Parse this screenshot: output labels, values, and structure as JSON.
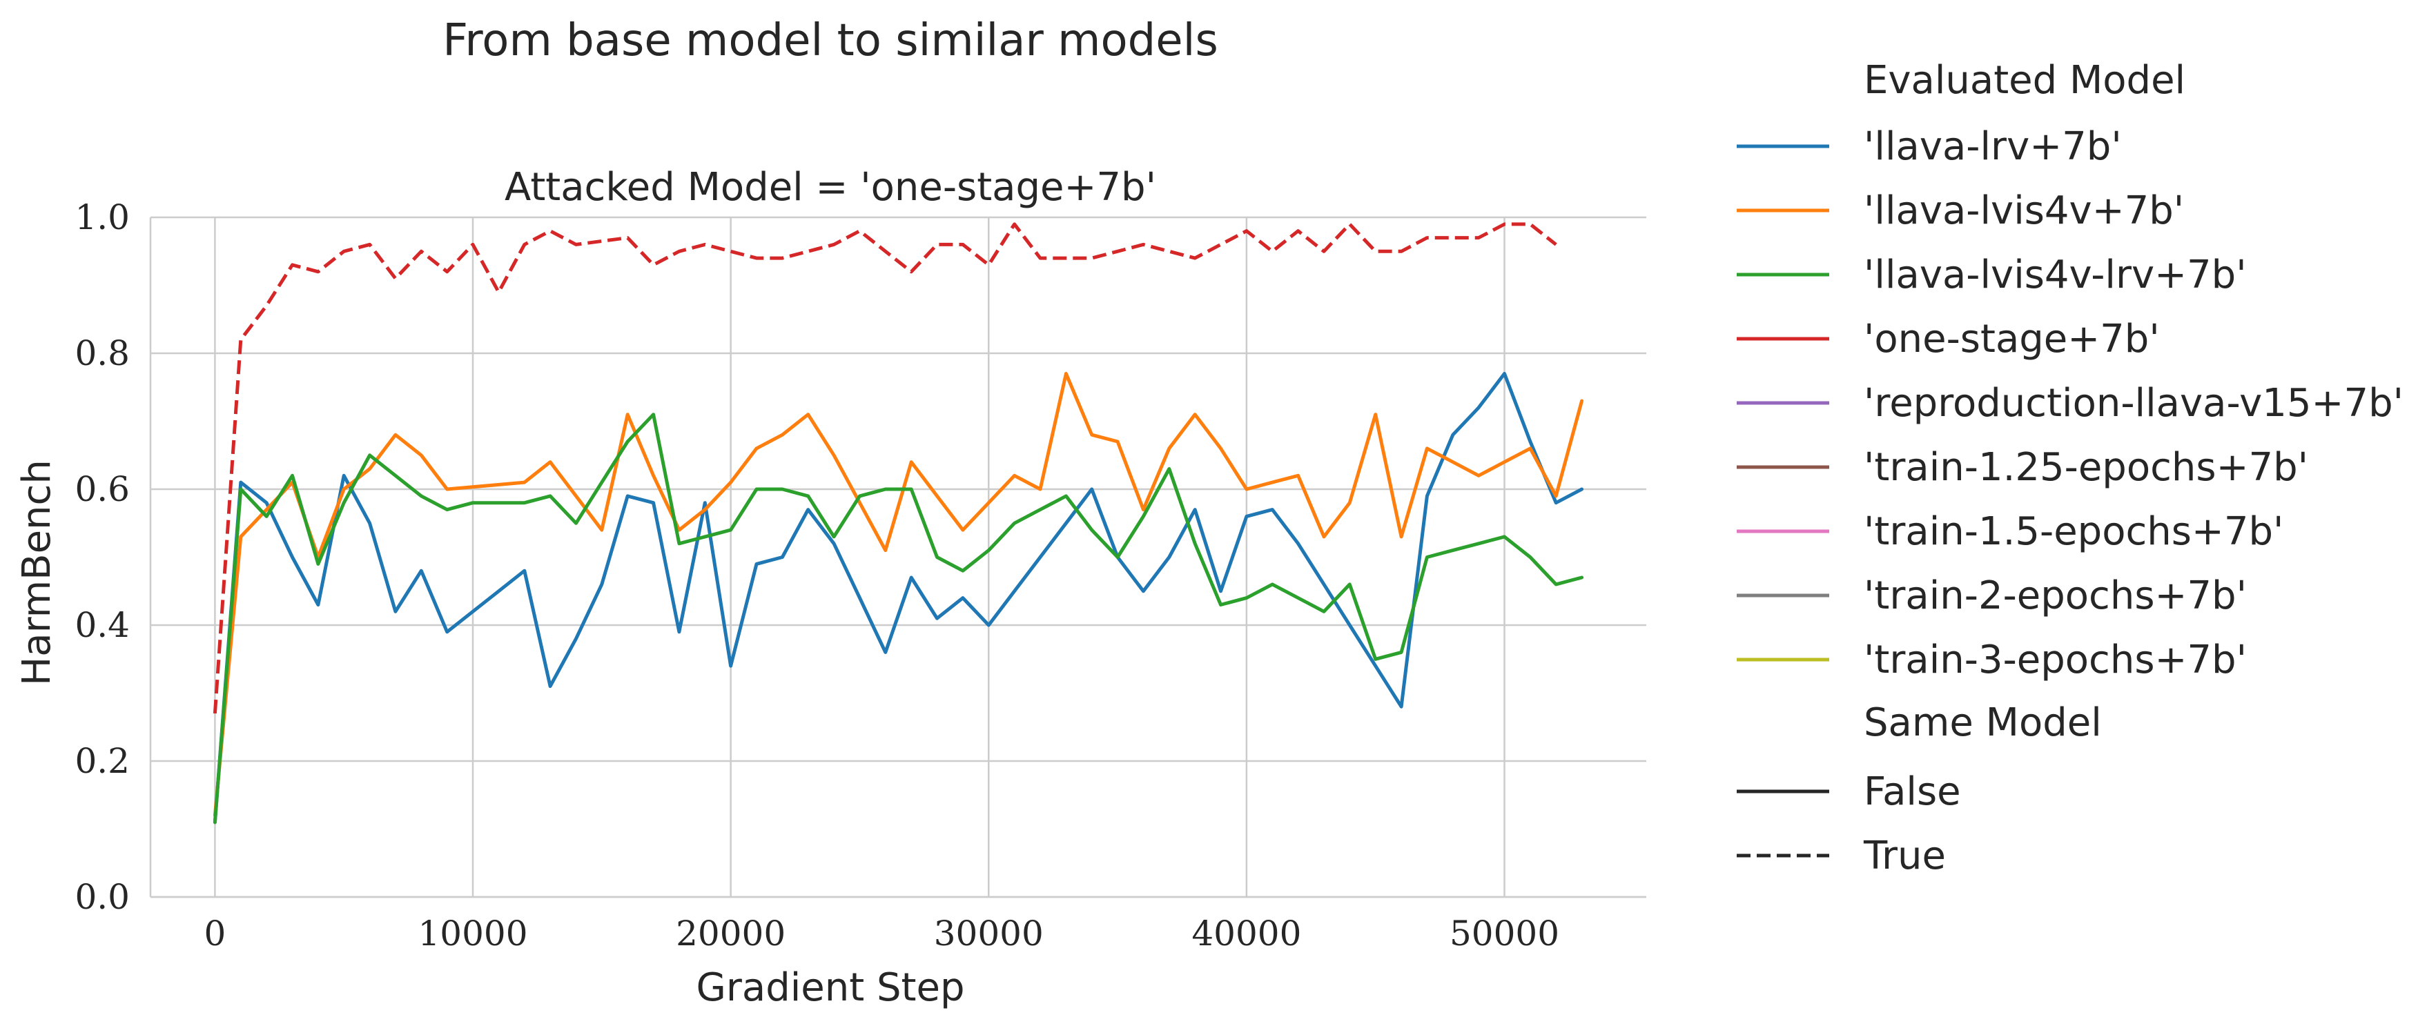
{
  "figure": {
    "suptitle": "From base model to similar models",
    "panel_title": "Attacked Model = 'one-stage+7b'"
  },
  "legend": {
    "color_title": "Evaluated Model",
    "style_title": "Same Model",
    "entries": [
      {
        "label": "'llava-lrv+7b'",
        "color": "#1f77b4"
      },
      {
        "label": "'llava-lvis4v+7b'",
        "color": "#ff7f0e"
      },
      {
        "label": "'llava-lvis4v-lrv+7b'",
        "color": "#2ca02c"
      },
      {
        "label": "'one-stage+7b'",
        "color": "#d62728"
      },
      {
        "label": "'reproduction-llava-v15+7b'",
        "color": "#9467bd"
      },
      {
        "label": "'train-1.25-epochs+7b'",
        "color": "#8c564b"
      },
      {
        "label": "'train-1.5-epochs+7b'",
        "color": "#e377c2"
      },
      {
        "label": "'train-2-epochs+7b'",
        "color": "#7f7f7f"
      },
      {
        "label": "'train-3-epochs+7b'",
        "color": "#bcbd22"
      }
    ],
    "styles": [
      {
        "label": "False",
        "dash": "solid"
      },
      {
        "label": "True",
        "dash": "dashed"
      }
    ]
  },
  "chart_data": {
    "type": "line",
    "title": "Attacked Model = 'one-stage+7b'",
    "xlabel": "Gradient Step",
    "ylabel": "HarmBench",
    "xlim": [
      -2500,
      55500
    ],
    "ylim": [
      0.0,
      1.0
    ],
    "xticks": [
      0,
      10000,
      20000,
      30000,
      40000,
      50000
    ],
    "xtick_labels": [
      "0",
      "10000",
      "20000",
      "30000",
      "40000",
      "50000"
    ],
    "yticks": [
      0.0,
      0.2,
      0.4,
      0.6,
      0.8,
      1.0
    ],
    "ytick_labels": [
      "0.0",
      "0.2",
      "0.4",
      "0.6",
      "0.8",
      "1.0"
    ],
    "grid": true,
    "legend_position": "outside right",
    "series": [
      {
        "name": "'llava-lrv+7b'",
        "same_model": "False",
        "color": "#1f77b4",
        "x": [
          0,
          1000,
          2000,
          3000,
          4000,
          5000,
          6000,
          7000,
          8000,
          9000,
          10000,
          11000,
          12000,
          13000,
          14000,
          15000,
          16000,
          17000,
          18000,
          19000,
          20000,
          21000,
          22000,
          23000,
          24000,
          25000,
          26000,
          27000,
          28000,
          29000,
          30000,
          31000,
          32000,
          33000,
          34000,
          35000,
          36000,
          37000,
          38000,
          39000,
          40000,
          41000,
          42000,
          43000,
          44000,
          45000,
          46000,
          47000,
          48000,
          49000,
          50000,
          51000,
          52000,
          53000
        ],
        "y": [
          0.11,
          0.61,
          0.58,
          0.5,
          0.43,
          0.62,
          0.55,
          0.42,
          0.48,
          0.39,
          0.42,
          0.45,
          0.48,
          0.31,
          0.38,
          0.46,
          0.59,
          0.58,
          0.39,
          0.58,
          0.34,
          0.49,
          0.5,
          0.57,
          0.52,
          0.44,
          0.36,
          0.47,
          0.41,
          0.44,
          0.4,
          0.45,
          0.5,
          0.55,
          0.6,
          0.5,
          0.45,
          0.5,
          0.57,
          0.45,
          0.56,
          0.57,
          0.52,
          0.46,
          0.4,
          0.34,
          0.28,
          0.59,
          0.68,
          0.72,
          0.77,
          0.67,
          0.58,
          0.6
        ]
      },
      {
        "name": "'llava-lvis4v+7b'",
        "same_model": "False",
        "color": "#ff7f0e",
        "x": [
          0,
          1000,
          2000,
          3000,
          4000,
          5000,
          6000,
          7000,
          8000,
          9000,
          12000,
          13000,
          14000,
          15000,
          16000,
          17000,
          18000,
          19000,
          20000,
          21000,
          22000,
          23000,
          24000,
          25000,
          26000,
          27000,
          28000,
          29000,
          30000,
          31000,
          32000,
          33000,
          34000,
          35000,
          36000,
          37000,
          38000,
          39000,
          40000,
          41000,
          42000,
          43000,
          44000,
          45000,
          46000,
          47000,
          48000,
          49000,
          50000,
          51000,
          52000,
          53000
        ],
        "y": [
          0.12,
          0.53,
          0.57,
          0.61,
          0.5,
          0.6,
          0.63,
          0.68,
          0.65,
          0.6,
          0.61,
          0.64,
          0.59,
          0.54,
          0.71,
          0.62,
          0.54,
          0.57,
          0.61,
          0.66,
          0.68,
          0.71,
          0.65,
          0.58,
          0.51,
          0.64,
          0.59,
          0.54,
          0.58,
          0.62,
          0.6,
          0.77,
          0.68,
          0.67,
          0.57,
          0.66,
          0.71,
          0.66,
          0.6,
          0.61,
          0.62,
          0.53,
          0.58,
          0.71,
          0.53,
          0.66,
          0.64,
          0.62,
          0.64,
          0.66,
          0.59,
          0.73
        ]
      },
      {
        "name": "'llava-lvis4v-lrv+7b'",
        "same_model": "False",
        "color": "#2ca02c",
        "x": [
          0,
          1000,
          2000,
          3000,
          4000,
          5000,
          6000,
          7000,
          8000,
          9000,
          10000,
          11000,
          12000,
          13000,
          14000,
          15000,
          16000,
          17000,
          18000,
          19000,
          20000,
          21000,
          22000,
          23000,
          24000,
          25000,
          26000,
          27000,
          28000,
          29000,
          30000,
          31000,
          32000,
          33000,
          34000,
          35000,
          36000,
          37000,
          38000,
          39000,
          40000,
          41000,
          42000,
          43000,
          44000,
          45000,
          46000,
          47000,
          48000,
          49000,
          50000,
          51000,
          52000,
          53000
        ],
        "y": [
          0.11,
          0.6,
          0.56,
          0.62,
          0.49,
          0.58,
          0.65,
          0.62,
          0.59,
          0.57,
          0.58,
          0.58,
          0.58,
          0.59,
          0.55,
          0.61,
          0.67,
          0.71,
          0.52,
          0.53,
          0.54,
          0.6,
          0.6,
          0.59,
          0.53,
          0.59,
          0.6,
          0.6,
          0.5,
          0.48,
          0.51,
          0.55,
          0.57,
          0.59,
          0.54,
          0.5,
          0.56,
          0.63,
          0.52,
          0.43,
          0.44,
          0.46,
          0.44,
          0.42,
          0.46,
          0.35,
          0.36,
          0.5,
          0.51,
          0.52,
          0.53,
          0.5,
          0.46,
          0.47
        ]
      },
      {
        "name": "'one-stage+7b'",
        "same_model": "True",
        "color": "#d62728",
        "x": [
          0,
          1000,
          2000,
          3000,
          4000,
          5000,
          6000,
          7000,
          8000,
          9000,
          10000,
          11000,
          12000,
          13000,
          14000,
          15000,
          16000,
          17000,
          18000,
          19000,
          20000,
          21000,
          22000,
          23000,
          24000,
          25000,
          26000,
          27000,
          28000,
          29000,
          30000,
          31000,
          32000,
          33000,
          34000,
          35000,
          36000,
          37000,
          38000,
          39000,
          40000,
          41000,
          42000,
          43000,
          44000,
          45000,
          46000,
          47000,
          48000,
          49000,
          50000,
          51000,
          52000
        ],
        "y": [
          0.27,
          0.82,
          0.87,
          0.93,
          0.92,
          0.95,
          0.96,
          0.91,
          0.95,
          0.92,
          0.96,
          0.89,
          0.96,
          0.98,
          0.96,
          0.965,
          0.97,
          0.93,
          0.95,
          0.96,
          0.95,
          0.94,
          0.94,
          0.95,
          0.96,
          0.98,
          0.95,
          0.92,
          0.96,
          0.96,
          0.93,
          0.99,
          0.94,
          0.94,
          0.94,
          0.95,
          0.96,
          0.95,
          0.94,
          0.96,
          0.98,
          0.95,
          0.98,
          0.95,
          0.99,
          0.95,
          0.95,
          0.97,
          0.97,
          0.97,
          0.99,
          0.99,
          0.96
        ]
      }
    ]
  }
}
